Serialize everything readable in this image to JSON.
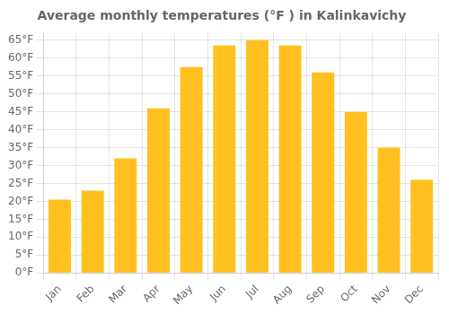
{
  "chart_data": {
    "type": "bar",
    "title": "Average monthly temperatures (°F ) in Kalinkavichy",
    "categories": [
      "Jan",
      "Feb",
      "Mar",
      "Apr",
      "May",
      "Jun",
      "Jul",
      "Aug",
      "Sep",
      "Oct",
      "Nov",
      "Dec"
    ],
    "values": [
      20.5,
      23.0,
      32.0,
      46.0,
      57.5,
      63.5,
      65.0,
      63.5,
      56.0,
      45.0,
      35.0,
      26.0
    ],
    "color": "#FFC020",
    "ylim": [
      0,
      67
    ],
    "yticks": [
      {
        "value": 0,
        "label": "0°F"
      },
      {
        "value": 5,
        "label": "5°F"
      },
      {
        "value": 10,
        "label": "10°F"
      },
      {
        "value": 15,
        "label": "15°F"
      },
      {
        "value": 20,
        "label": "20°F"
      },
      {
        "value": 25,
        "label": "25°F"
      },
      {
        "value": 30,
        "label": "30°F"
      },
      {
        "value": 35,
        "label": "35°F"
      },
      {
        "value": 40,
        "label": "40°F"
      },
      {
        "value": 45,
        "label": "45°F"
      },
      {
        "value": 50,
        "label": "50°F"
      },
      {
        "value": 55,
        "label": "55°F"
      },
      {
        "value": 60,
        "label": "60°F"
      },
      {
        "value": 65,
        "label": "65°F"
      }
    ],
    "grid": true
  }
}
